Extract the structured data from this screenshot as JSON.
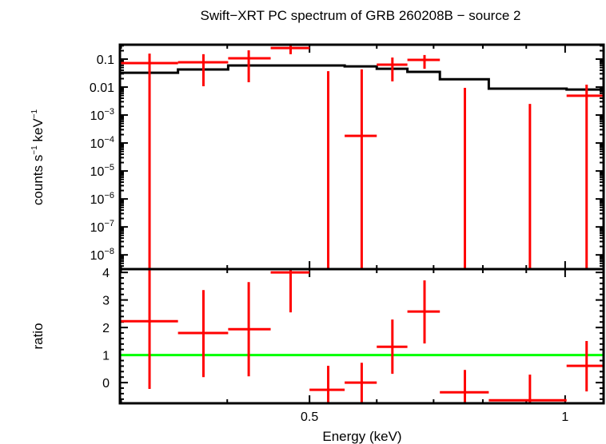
{
  "chart_data": [
    {
      "panel": "spectrum",
      "type": "scatter",
      "title": "Swift−XRT PC spectrum of GRB 260208B − source 2",
      "ylabel": {
        "text": "counts s",
        "exp1": "−1",
        "mid": " keV",
        "exp2": "−1"
      },
      "xscale": "log",
      "yscale": "log",
      "xlim": [
        0.299,
        1.11
      ],
      "ylim": [
        3.1e-09,
        0.327
      ],
      "yticks": [
        {
          "v": 0.1,
          "base": "0.1",
          "exp": ""
        },
        {
          "v": 0.01,
          "base": "0.01",
          "exp": ""
        },
        {
          "v": 0.001,
          "base": "10",
          "exp": "−3"
        },
        {
          "v": 0.0001,
          "base": "10",
          "exp": "−4"
        },
        {
          "v": 1e-05,
          "base": "10",
          "exp": "−5"
        },
        {
          "v": 1e-06,
          "base": "10",
          "exp": "−6"
        },
        {
          "v": 1e-07,
          "base": "10",
          "exp": "−7"
        },
        {
          "v": 1e-08,
          "base": "10",
          "exp": "−8"
        }
      ],
      "series": [
        {
          "name": "data",
          "color": "#ff0000",
          "points": [
            {
              "xlo": 0.299,
              "xhi": 0.35,
              "x": 0.324,
              "y": 0.072,
              "ylo": null,
              "yhi": 0.158
            },
            {
              "xlo": 0.35,
              "xhi": 0.401,
              "x": 0.375,
              "y": 0.077,
              "ylo": 0.0107,
              "yhi": 0.15
            },
            {
              "xlo": 0.401,
              "xhi": 0.45,
              "x": 0.424,
              "y": 0.107,
              "ylo": 0.0149,
              "yhi": 0.206
            },
            {
              "xlo": 0.45,
              "xhi": 0.5,
              "x": 0.475,
              "y": 0.25,
              "ylo": 0.15,
              "yhi": 0.33
            },
            {
              "xlo": 0.5,
              "xhi": 0.55,
              "x": 0.526,
              "y": null,
              "ylo": null,
              "yhi": 0.037
            },
            {
              "xlo": 0.55,
              "xhi": 0.6,
              "x": 0.576,
              "y": 0.00018,
              "ylo": null,
              "yhi": 0.043
            },
            {
              "xlo": 0.6,
              "xhi": 0.652,
              "x": 0.626,
              "y": 0.063,
              "ylo": 0.016,
              "yhi": 0.114
            },
            {
              "xlo": 0.652,
              "xhi": 0.712,
              "x": 0.683,
              "y": 0.094,
              "ylo": 0.045,
              "yhi": 0.14
            },
            {
              "xlo": 0.712,
              "xhi": 0.813,
              "x": 0.762,
              "y": null,
              "ylo": null,
              "yhi": 0.0094
            },
            {
              "xlo": 0.813,
              "xhi": 1.004,
              "x": 0.909,
              "y": null,
              "ylo": null,
              "yhi": 0.0025
            },
            {
              "xlo": 1.004,
              "xhi": 1.11,
              "x": 1.06,
              "y": 0.0049,
              "ylo": null,
              "yhi": 0.0122
            }
          ]
        },
        {
          "name": "model",
          "color": "#000000",
          "type": "step",
          "edges": [
            0.299,
            0.35,
            0.401,
            0.45,
            0.5,
            0.55,
            0.6,
            0.652,
            0.712,
            0.813,
            1.004,
            1.11
          ],
          "values": [
            0.0326,
            0.0425,
            0.059,
            0.059,
            0.059,
            0.055,
            0.045,
            0.035,
            0.019,
            0.0088,
            0.0082
          ]
        }
      ]
    },
    {
      "panel": "ratio",
      "type": "scatter",
      "xlabel": "Energy (keV)",
      "ylabel": "ratio",
      "xscale": "log",
      "xlim": [
        0.299,
        1.11
      ],
      "ylim": [
        -0.75,
        4.12
      ],
      "xticks": [
        {
          "v": 0.5,
          "label": "0.5"
        },
        {
          "v": 1,
          "label": "1"
        }
      ],
      "yticks": [
        {
          "v": 0,
          "label": "0"
        },
        {
          "v": 1,
          "label": "1"
        },
        {
          "v": 2,
          "label": "2"
        },
        {
          "v": 3,
          "label": "3"
        },
        {
          "v": 4,
          "label": "4"
        }
      ],
      "reference_line": {
        "y": 1,
        "color": "#00ff00"
      },
      "series": [
        {
          "name": "ratio",
          "color": "#ff0000",
          "points": [
            {
              "xlo": 0.299,
              "xhi": 0.35,
              "x": 0.324,
              "y": 2.23,
              "ylo": -0.23,
              "yhi": null
            },
            {
              "xlo": 0.35,
              "xhi": 0.401,
              "x": 0.375,
              "y": 1.8,
              "ylo": 0.2,
              "yhi": 3.36
            },
            {
              "xlo": 0.401,
              "xhi": 0.45,
              "x": 0.424,
              "y": 1.94,
              "ylo": 0.23,
              "yhi": 3.65
            },
            {
              "xlo": 0.45,
              "xhi": 0.5,
              "x": 0.475,
              "y": 4.0,
              "ylo": 2.55,
              "yhi": null
            },
            {
              "xlo": 0.5,
              "xhi": 0.55,
              "x": 0.526,
              "y": -0.26,
              "ylo": null,
              "yhi": 0.61
            },
            {
              "xlo": 0.55,
              "xhi": 0.6,
              "x": 0.576,
              "y": 0.0,
              "ylo": null,
              "yhi": 0.72
            },
            {
              "xlo": 0.6,
              "xhi": 0.652,
              "x": 0.626,
              "y": 1.3,
              "ylo": 0.32,
              "yhi": 2.29
            },
            {
              "xlo": 0.652,
              "xhi": 0.712,
              "x": 0.683,
              "y": 2.58,
              "ylo": 1.42,
              "yhi": 3.71
            },
            {
              "xlo": 0.712,
              "xhi": 0.813,
              "x": 0.762,
              "y": -0.35,
              "ylo": null,
              "yhi": 0.46
            },
            {
              "xlo": 0.813,
              "xhi": 1.004,
              "x": 0.909,
              "y": -0.64,
              "ylo": null,
              "yhi": 0.29
            },
            {
              "xlo": 1.004,
              "xhi": 1.11,
              "x": 1.06,
              "y": 0.61,
              "ylo": -0.32,
              "yhi": 1.51
            }
          ]
        }
      ]
    }
  ]
}
